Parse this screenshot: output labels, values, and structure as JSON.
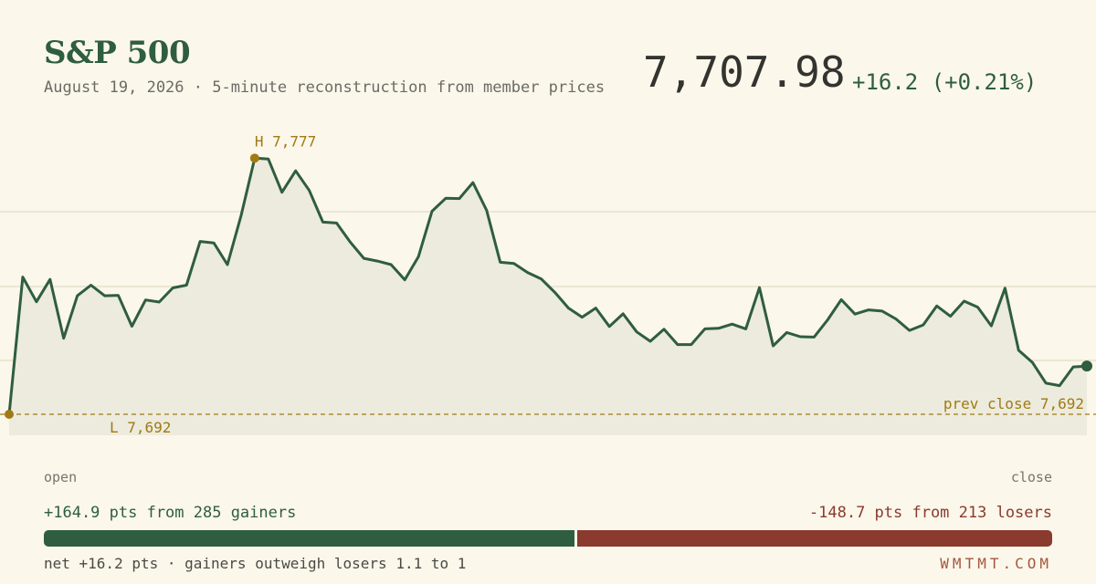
{
  "header": {
    "title": "S&P 500",
    "subtitle": "August 19, 2026 · 5-minute reconstruction from member prices",
    "price": "7,707.98",
    "change": "+16.2 (+0.21%)"
  },
  "colors": {
    "line": "#2f5d3f",
    "area": "#ecebdd",
    "marker": "#a07a14",
    "gain": "#2f5d3f",
    "loss": "#8b3a2e"
  },
  "chart_data": {
    "type": "line",
    "title": "S&P 500",
    "xlabel": "",
    "ylabel": "",
    "x_start_label": "open",
    "x_end_label": "close",
    "ylim": [
      7692,
      7777
    ],
    "grid": "horizontal",
    "series": [
      {
        "values": [
          7692,
          7737.5,
          7729.3,
          7736.7,
          7717.2,
          7731.3,
          7734.8,
          7731.3,
          7731.4,
          7721.2,
          7729.9,
          7729.2,
          7733.9,
          7734.8,
          7749.3,
          7748.8,
          7741.6,
          7757.8,
          7776.9,
          7776.6,
          7765.6,
          7772.7,
          7766.2,
          7755.7,
          7755.4,
          7749.1,
          7743.7,
          7742.8,
          7741.6,
          7736.6,
          7744.2,
          7759.3,
          7763.6,
          7763.5,
          7768.8,
          7759.6,
          7742.4,
          7742.0,
          7739.0,
          7736.9,
          7732.4,
          7727.2,
          7724.2,
          7727.2,
          7721.1,
          7725.3,
          7719.3,
          7716.2,
          7720.2,
          7715.1,
          7715.1,
          7720.3,
          7720.5,
          7721.9,
          7720.3,
          7734.0,
          7714.7,
          7719.1,
          7717.7,
          7717.6,
          7723.3,
          7730.0,
          7725.2,
          7726.6,
          7726.2,
          7723.6,
          7719.8,
          7721.6,
          7727.9,
          7724.5,
          7729.5,
          7727.5,
          7721.3,
          7733.8,
          7713.2,
          7709.2,
          7702.3,
          7701.5,
          7707.7,
          7707.98
        ]
      }
    ],
    "annotations": {
      "high_label": "H 7,777",
      "low_label": "L 7,692",
      "prev_close_label": "prev close 7,692",
      "prev_close_value": 7692
    }
  },
  "breadth": {
    "open_label": "open",
    "close_label": "close",
    "gainers_text": "+164.9 pts from 285 gainers",
    "losers_text": "-148.7 pts from 213 losers",
    "gain_points": 164.9,
    "loss_points": 148.7,
    "net_text": "net +16.2 pts · gainers outweigh losers 1.1 to 1"
  },
  "brand": "WMTMT.COM"
}
